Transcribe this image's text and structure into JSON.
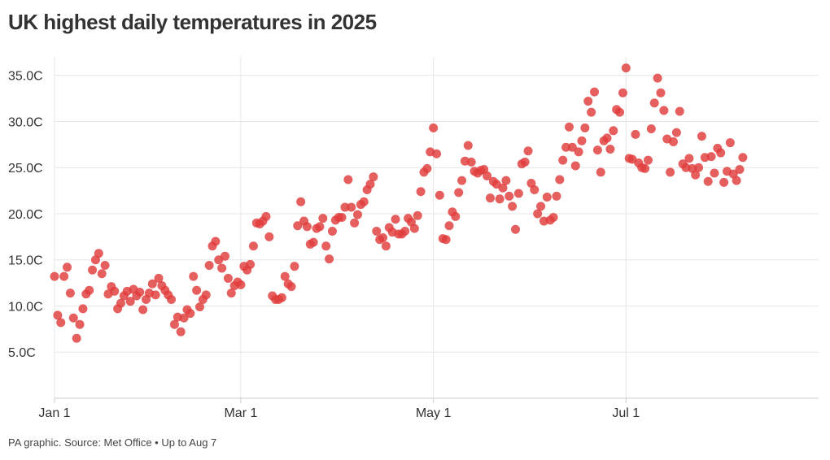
{
  "title": "UK highest daily temperatures in 2025",
  "source": "PA graphic. Source: Met Office • Up to Aug 7",
  "colors": {
    "dot": "#e03c3c",
    "grid": "#e6e6e6",
    "axis": "#cccccc",
    "text": "#333333"
  },
  "chart_data": {
    "type": "scatter",
    "title": "UK highest daily temperatures in 2025",
    "xlabel": "",
    "ylabel": "",
    "x_start": "2025-01-01",
    "x_end": "2025-08-31",
    "ylim": [
      0,
      37
    ],
    "y_ticks": [
      5,
      10,
      15,
      20,
      25,
      30,
      35
    ],
    "y_tick_labels": [
      "5.0C",
      "10.0C",
      "15.0C",
      "20.0C",
      "25.0C",
      "30.0C",
      "35.0C"
    ],
    "x_ticks": [
      "2025-01-01",
      "2025-03-01",
      "2025-05-01",
      "2025-07-01"
    ],
    "x_tick_labels": [
      "Jan 1",
      "Mar 1",
      "May 1",
      "Jul 1"
    ],
    "grid": true,
    "series": [
      {
        "values": [
          {
            "date": "2025-01-01",
            "temp": 13.2
          },
          {
            "date": "2025-01-02",
            "temp": 9.0
          },
          {
            "date": "2025-01-03",
            "temp": 8.2
          },
          {
            "date": "2025-01-04",
            "temp": 13.2
          },
          {
            "date": "2025-01-05",
            "temp": 14.2
          },
          {
            "date": "2025-01-06",
            "temp": 11.4
          },
          {
            "date": "2025-01-07",
            "temp": 8.7
          },
          {
            "date": "2025-01-08",
            "temp": 6.5
          },
          {
            "date": "2025-01-09",
            "temp": 8.0
          },
          {
            "date": "2025-01-10",
            "temp": 9.7
          },
          {
            "date": "2025-01-11",
            "temp": 11.3
          },
          {
            "date": "2025-01-12",
            "temp": 11.7
          },
          {
            "date": "2025-01-13",
            "temp": 13.9
          },
          {
            "date": "2025-01-14",
            "temp": 15.0
          },
          {
            "date": "2025-01-15",
            "temp": 15.7
          },
          {
            "date": "2025-01-16",
            "temp": 13.5
          },
          {
            "date": "2025-01-17",
            "temp": 14.4
          },
          {
            "date": "2025-01-18",
            "temp": 11.3
          },
          {
            "date": "2025-01-19",
            "temp": 12.1
          },
          {
            "date": "2025-01-20",
            "temp": 11.6
          },
          {
            "date": "2025-01-21",
            "temp": 9.7
          },
          {
            "date": "2025-01-22",
            "temp": 10.3
          },
          {
            "date": "2025-01-23",
            "temp": 11.1
          },
          {
            "date": "2025-01-24",
            "temp": 11.6
          },
          {
            "date": "2025-01-25",
            "temp": 10.5
          },
          {
            "date": "2025-01-26",
            "temp": 11.8
          },
          {
            "date": "2025-01-27",
            "temp": 11.1
          },
          {
            "date": "2025-01-28",
            "temp": 11.5
          },
          {
            "date": "2025-01-29",
            "temp": 9.6
          },
          {
            "date": "2025-01-30",
            "temp": 10.7
          },
          {
            "date": "2025-01-31",
            "temp": 11.4
          },
          {
            "date": "2025-02-01",
            "temp": 12.4
          },
          {
            "date": "2025-02-02",
            "temp": 11.2
          },
          {
            "date": "2025-02-03",
            "temp": 13.0
          },
          {
            "date": "2025-02-04",
            "temp": 12.2
          },
          {
            "date": "2025-02-05",
            "temp": 11.7
          },
          {
            "date": "2025-02-06",
            "temp": 11.2
          },
          {
            "date": "2025-02-07",
            "temp": 10.7
          },
          {
            "date": "2025-02-08",
            "temp": 8.0
          },
          {
            "date": "2025-02-09",
            "temp": 8.8
          },
          {
            "date": "2025-02-10",
            "temp": 7.2
          },
          {
            "date": "2025-02-11",
            "temp": 8.7
          },
          {
            "date": "2025-02-12",
            "temp": 9.6
          },
          {
            "date": "2025-02-13",
            "temp": 9.2
          },
          {
            "date": "2025-02-14",
            "temp": 13.2
          },
          {
            "date": "2025-02-15",
            "temp": 11.7
          },
          {
            "date": "2025-02-16",
            "temp": 9.9
          },
          {
            "date": "2025-02-17",
            "temp": 10.7
          },
          {
            "date": "2025-02-18",
            "temp": 11.2
          },
          {
            "date": "2025-02-19",
            "temp": 14.4
          },
          {
            "date": "2025-02-20",
            "temp": 16.5
          },
          {
            "date": "2025-02-21",
            "temp": 17.0
          },
          {
            "date": "2025-02-22",
            "temp": 15.0
          },
          {
            "date": "2025-02-23",
            "temp": 14.1
          },
          {
            "date": "2025-02-24",
            "temp": 15.4
          },
          {
            "date": "2025-02-25",
            "temp": 13.0
          },
          {
            "date": "2025-02-26",
            "temp": 11.4
          },
          {
            "date": "2025-02-27",
            "temp": 12.2
          },
          {
            "date": "2025-02-28",
            "temp": 12.6
          },
          {
            "date": "2025-03-01",
            "temp": 12.3
          },
          {
            "date": "2025-03-02",
            "temp": 14.3
          },
          {
            "date": "2025-03-03",
            "temp": 13.9
          },
          {
            "date": "2025-03-04",
            "temp": 14.5
          },
          {
            "date": "2025-03-05",
            "temp": 16.5
          },
          {
            "date": "2025-03-06",
            "temp": 19.0
          },
          {
            "date": "2025-03-07",
            "temp": 18.9
          },
          {
            "date": "2025-03-08",
            "temp": 19.2
          },
          {
            "date": "2025-03-09",
            "temp": 19.7
          },
          {
            "date": "2025-03-10",
            "temp": 17.5
          },
          {
            "date": "2025-03-11",
            "temp": 11.1
          },
          {
            "date": "2025-03-12",
            "temp": 10.7
          },
          {
            "date": "2025-03-13",
            "temp": 10.7
          },
          {
            "date": "2025-03-14",
            "temp": 10.9
          },
          {
            "date": "2025-03-15",
            "temp": 13.2
          },
          {
            "date": "2025-03-16",
            "temp": 12.4
          },
          {
            "date": "2025-03-17",
            "temp": 12.1
          },
          {
            "date": "2025-03-18",
            "temp": 14.3
          },
          {
            "date": "2025-03-19",
            "temp": 18.7
          },
          {
            "date": "2025-03-20",
            "temp": 21.3
          },
          {
            "date": "2025-03-21",
            "temp": 19.2
          },
          {
            "date": "2025-03-22",
            "temp": 18.6
          },
          {
            "date": "2025-03-23",
            "temp": 16.7
          },
          {
            "date": "2025-03-24",
            "temp": 16.9
          },
          {
            "date": "2025-03-25",
            "temp": 18.4
          },
          {
            "date": "2025-03-26",
            "temp": 18.6
          },
          {
            "date": "2025-03-27",
            "temp": 19.5
          },
          {
            "date": "2025-03-28",
            "temp": 16.5
          },
          {
            "date": "2025-03-29",
            "temp": 15.1
          },
          {
            "date": "2025-03-30",
            "temp": 18.1
          },
          {
            "date": "2025-03-31",
            "temp": 19.3
          },
          {
            "date": "2025-04-01",
            "temp": 19.6
          },
          {
            "date": "2025-04-02",
            "temp": 19.6
          },
          {
            "date": "2025-04-03",
            "temp": 20.7
          },
          {
            "date": "2025-04-04",
            "temp": 23.7
          },
          {
            "date": "2025-04-05",
            "temp": 20.7
          },
          {
            "date": "2025-04-06",
            "temp": 19.0
          },
          {
            "date": "2025-04-07",
            "temp": 19.9
          },
          {
            "date": "2025-04-08",
            "temp": 21.0
          },
          {
            "date": "2025-04-09",
            "temp": 21.3
          },
          {
            "date": "2025-04-10",
            "temp": 22.6
          },
          {
            "date": "2025-04-11",
            "temp": 23.2
          },
          {
            "date": "2025-04-12",
            "temp": 24.0
          },
          {
            "date": "2025-04-13",
            "temp": 18.1
          },
          {
            "date": "2025-04-14",
            "temp": 17.2
          },
          {
            "date": "2025-04-15",
            "temp": 17.4
          },
          {
            "date": "2025-04-16",
            "temp": 16.5
          },
          {
            "date": "2025-04-17",
            "temp": 18.5
          },
          {
            "date": "2025-04-18",
            "temp": 18.0
          },
          {
            "date": "2025-04-19",
            "temp": 19.4
          },
          {
            "date": "2025-04-20",
            "temp": 17.8
          },
          {
            "date": "2025-04-21",
            "temp": 17.8
          },
          {
            "date": "2025-04-22",
            "temp": 18.1
          },
          {
            "date": "2025-04-23",
            "temp": 19.5
          },
          {
            "date": "2025-04-24",
            "temp": 19.1
          },
          {
            "date": "2025-04-25",
            "temp": 18.4
          },
          {
            "date": "2025-04-26",
            "temp": 19.8
          },
          {
            "date": "2025-04-27",
            "temp": 22.4
          },
          {
            "date": "2025-04-28",
            "temp": 24.5
          },
          {
            "date": "2025-04-29",
            "temp": 24.9
          },
          {
            "date": "2025-04-30",
            "temp": 26.7
          },
          {
            "date": "2025-05-01",
            "temp": 29.3
          },
          {
            "date": "2025-05-02",
            "temp": 26.5
          },
          {
            "date": "2025-05-03",
            "temp": 22.0
          },
          {
            "date": "2025-05-04",
            "temp": 17.3
          },
          {
            "date": "2025-05-05",
            "temp": 17.2
          },
          {
            "date": "2025-05-06",
            "temp": 18.7
          },
          {
            "date": "2025-05-07",
            "temp": 20.2
          },
          {
            "date": "2025-05-08",
            "temp": 19.7
          },
          {
            "date": "2025-05-09",
            "temp": 22.3
          },
          {
            "date": "2025-05-10",
            "temp": 23.6
          },
          {
            "date": "2025-05-11",
            "temp": 25.7
          },
          {
            "date": "2025-05-12",
            "temp": 27.4
          },
          {
            "date": "2025-05-13",
            "temp": 25.6
          },
          {
            "date": "2025-05-14",
            "temp": 24.6
          },
          {
            "date": "2025-05-15",
            "temp": 24.4
          },
          {
            "date": "2025-05-16",
            "temp": 24.7
          },
          {
            "date": "2025-05-17",
            "temp": 24.8
          },
          {
            "date": "2025-05-18",
            "temp": 24.1
          },
          {
            "date": "2025-05-19",
            "temp": 21.7
          },
          {
            "date": "2025-05-20",
            "temp": 23.5
          },
          {
            "date": "2025-05-21",
            "temp": 23.2
          },
          {
            "date": "2025-05-22",
            "temp": 21.6
          },
          {
            "date": "2025-05-23",
            "temp": 22.8
          },
          {
            "date": "2025-05-24",
            "temp": 23.6
          },
          {
            "date": "2025-05-25",
            "temp": 21.9
          },
          {
            "date": "2025-05-26",
            "temp": 20.8
          },
          {
            "date": "2025-05-27",
            "temp": 18.3
          },
          {
            "date": "2025-05-28",
            "temp": 22.2
          },
          {
            "date": "2025-05-29",
            "temp": 25.4
          },
          {
            "date": "2025-05-30",
            "temp": 25.6
          },
          {
            "date": "2025-05-31",
            "temp": 26.8
          },
          {
            "date": "2025-06-01",
            "temp": 23.3
          },
          {
            "date": "2025-06-02",
            "temp": 22.6
          },
          {
            "date": "2025-06-03",
            "temp": 20.0
          },
          {
            "date": "2025-06-04",
            "temp": 20.8
          },
          {
            "date": "2025-06-05",
            "temp": 19.2
          },
          {
            "date": "2025-06-06",
            "temp": 21.8
          },
          {
            "date": "2025-06-07",
            "temp": 19.3
          },
          {
            "date": "2025-06-08",
            "temp": 19.6
          },
          {
            "date": "2025-06-09",
            "temp": 21.9
          },
          {
            "date": "2025-06-10",
            "temp": 23.7
          },
          {
            "date": "2025-06-11",
            "temp": 25.8
          },
          {
            "date": "2025-06-12",
            "temp": 27.2
          },
          {
            "date": "2025-06-13",
            "temp": 29.4
          },
          {
            "date": "2025-06-14",
            "temp": 27.2
          },
          {
            "date": "2025-06-15",
            "temp": 25.2
          },
          {
            "date": "2025-06-16",
            "temp": 26.7
          },
          {
            "date": "2025-06-17",
            "temp": 27.9
          },
          {
            "date": "2025-06-18",
            "temp": 29.3
          },
          {
            "date": "2025-06-19",
            "temp": 32.2
          },
          {
            "date": "2025-06-20",
            "temp": 31.0
          },
          {
            "date": "2025-06-21",
            "temp": 33.2
          },
          {
            "date": "2025-06-22",
            "temp": 26.9
          },
          {
            "date": "2025-06-23",
            "temp": 24.5
          },
          {
            "date": "2025-06-24",
            "temp": 27.9
          },
          {
            "date": "2025-06-25",
            "temp": 28.2
          },
          {
            "date": "2025-06-26",
            "temp": 27.0
          },
          {
            "date": "2025-06-27",
            "temp": 29.0
          },
          {
            "date": "2025-06-28",
            "temp": 31.3
          },
          {
            "date": "2025-06-29",
            "temp": 31.0
          },
          {
            "date": "2025-06-30",
            "temp": 33.1
          },
          {
            "date": "2025-07-01",
            "temp": 35.8
          },
          {
            "date": "2025-07-02",
            "temp": 26.0
          },
          {
            "date": "2025-07-03",
            "temp": 25.9
          },
          {
            "date": "2025-07-04",
            "temp": 28.6
          },
          {
            "date": "2025-07-05",
            "temp": 25.5
          },
          {
            "date": "2025-07-06",
            "temp": 25.0
          },
          {
            "date": "2025-07-07",
            "temp": 24.9
          },
          {
            "date": "2025-07-08",
            "temp": 25.8
          },
          {
            "date": "2025-07-09",
            "temp": 29.2
          },
          {
            "date": "2025-07-10",
            "temp": 32.0
          },
          {
            "date": "2025-07-11",
            "temp": 34.7
          },
          {
            "date": "2025-07-12",
            "temp": 33.1
          },
          {
            "date": "2025-07-13",
            "temp": 31.2
          },
          {
            "date": "2025-07-14",
            "temp": 28.1
          },
          {
            "date": "2025-07-15",
            "temp": 24.5
          },
          {
            "date": "2025-07-16",
            "temp": 27.8
          },
          {
            "date": "2025-07-17",
            "temp": 28.8
          },
          {
            "date": "2025-07-18",
            "temp": 31.1
          },
          {
            "date": "2025-07-19",
            "temp": 25.4
          },
          {
            "date": "2025-07-20",
            "temp": 25.0
          },
          {
            "date": "2025-07-21",
            "temp": 26.0
          },
          {
            "date": "2025-07-22",
            "temp": 24.9
          },
          {
            "date": "2025-07-23",
            "temp": 24.2
          },
          {
            "date": "2025-07-24",
            "temp": 25.0
          },
          {
            "date": "2025-07-25",
            "temp": 28.4
          },
          {
            "date": "2025-07-26",
            "temp": 26.1
          },
          {
            "date": "2025-07-27",
            "temp": 23.5
          },
          {
            "date": "2025-07-28",
            "temp": 26.2
          },
          {
            "date": "2025-07-29",
            "temp": 24.4
          },
          {
            "date": "2025-07-30",
            "temp": 27.1
          },
          {
            "date": "2025-07-31",
            "temp": 26.6
          },
          {
            "date": "2025-08-01",
            "temp": 23.4
          },
          {
            "date": "2025-08-02",
            "temp": 24.6
          },
          {
            "date": "2025-08-03",
            "temp": 27.7
          },
          {
            "date": "2025-08-04",
            "temp": 24.3
          },
          {
            "date": "2025-08-05",
            "temp": 23.6
          },
          {
            "date": "2025-08-06",
            "temp": 24.8
          },
          {
            "date": "2025-08-07",
            "temp": 26.1
          }
        ]
      }
    ]
  }
}
